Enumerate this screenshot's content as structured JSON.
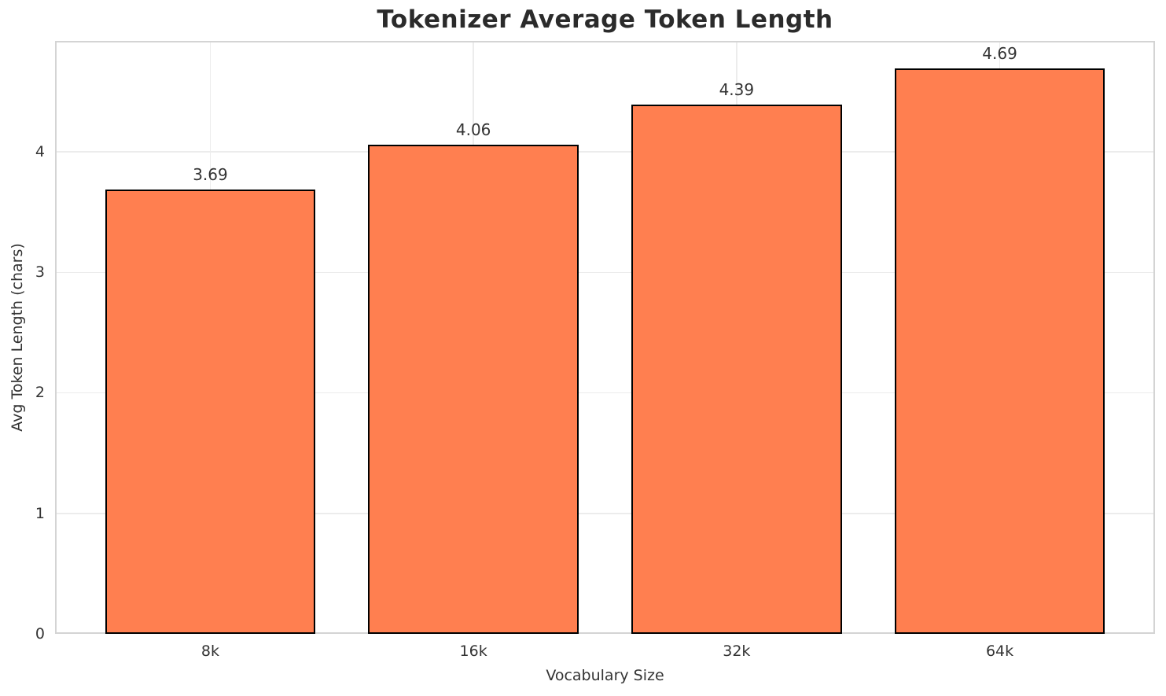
{
  "chart_data": {
    "type": "bar",
    "title": "Tokenizer Average Token Length",
    "xlabel": "Vocabulary Size",
    "ylabel": "Avg Token Length (chars)",
    "categories": [
      "8k",
      "16k",
      "32k",
      "64k"
    ],
    "values": [
      3.69,
      4.06,
      4.39,
      4.69
    ],
    "bar_labels": [
      "3.69",
      "4.06",
      "4.39",
      "4.69"
    ],
    "y_ticks": [
      0,
      1,
      2,
      3,
      4
    ],
    "ylim": [
      0,
      4.92
    ],
    "grid": true,
    "legend_position": "none",
    "colors": {
      "bar_fill": "#FF7F50",
      "bar_edge": "#000000",
      "grid": "#ececec",
      "spine": "#d4d4d4",
      "title_text": "#2b2b2b",
      "label_text": "#333333"
    }
  }
}
